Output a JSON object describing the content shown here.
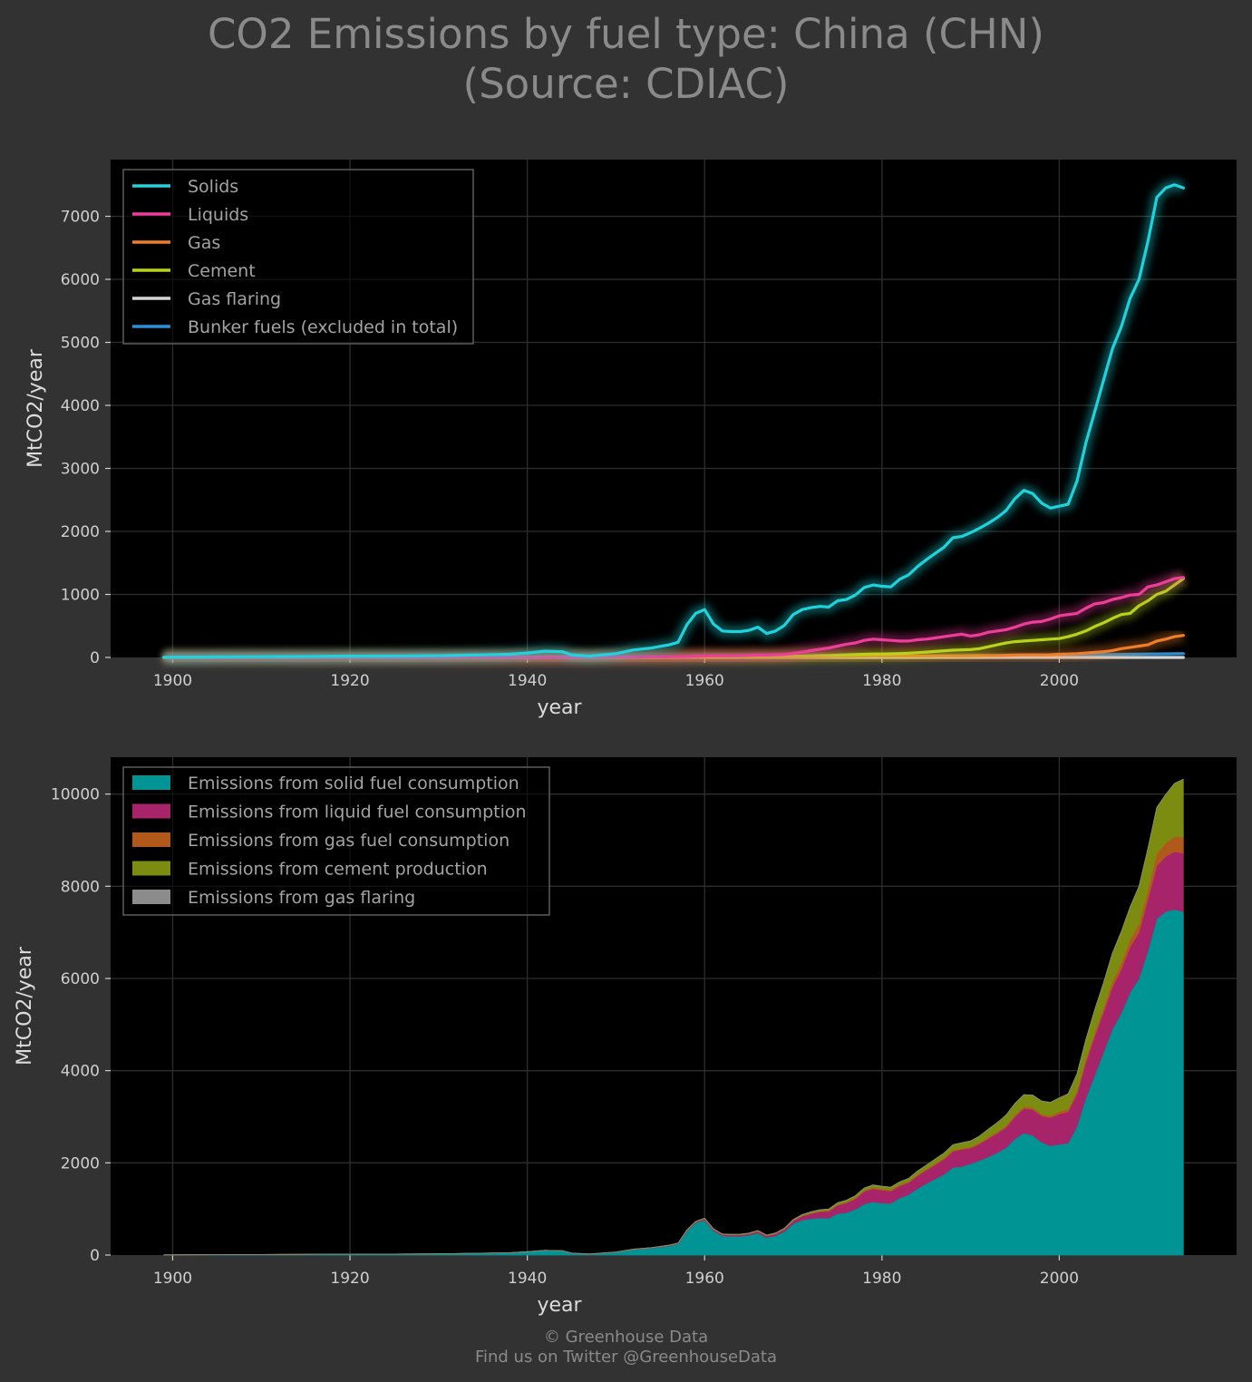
{
  "title": {
    "line1": "CO2 Emissions by fuel type: China (CHN)",
    "line2": "(Source: CDIAC)"
  },
  "footer": {
    "line1": "© Greenhouse Data",
    "line2": "Find us on Twitter @GreenhouseData"
  },
  "colors": {
    "background": "#323232",
    "plot_background": "#000000",
    "grid": "#2e2e2e",
    "solids": "#1fd3dd",
    "liquids": "#ee3e9a",
    "gas": "#f07d28",
    "cement": "#b9d31b",
    "gas_flaring": "#d6d6d6",
    "bunker": "#2a8fd3",
    "area_solid": "#009494",
    "area_liquid": "#a8246a",
    "area_gas": "#b0591b",
    "area_cement": "#7c8c10",
    "area_flaring": "#8c8c8c"
  },
  "chart_data": [
    {
      "type": "line",
      "xlabel": "year",
      "ylabel": "MtCO2/year",
      "xlim": [
        1893,
        2020
      ],
      "ylim": [
        0,
        7900
      ],
      "xticks": [
        1900,
        1920,
        1940,
        1960,
        1980,
        2000
      ],
      "yticks": [
        0,
        1000,
        2000,
        3000,
        4000,
        5000,
        6000,
        7000
      ],
      "grid": true,
      "legend_position": "top-left",
      "x": [
        1899,
        1902,
        1905,
        1910,
        1915,
        1920,
        1925,
        1930,
        1935,
        1938,
        1940,
        1942,
        1944,
        1945,
        1947,
        1950,
        1952,
        1954,
        1956,
        1957,
        1958,
        1959,
        1960,
        1961,
        1962,
        1963,
        1964,
        1965,
        1966,
        1967,
        1968,
        1969,
        1970,
        1971,
        1972,
        1973,
        1974,
        1975,
        1976,
        1977,
        1978,
        1979,
        1980,
        1981,
        1982,
        1983,
        1984,
        1985,
        1986,
        1987,
        1988,
        1989,
        1990,
        1991,
        1992,
        1993,
        1994,
        1995,
        1996,
        1997,
        1998,
        1999,
        2000,
        2001,
        2002,
        2003,
        2004,
        2005,
        2006,
        2007,
        2008,
        2009,
        2010,
        2011,
        2012,
        2013,
        2014
      ],
      "series": [
        {
          "name": "Solids",
          "key": "solids",
          "values": [
            3,
            5,
            8,
            12,
            15,
            20,
            22,
            28,
            40,
            50,
            70,
            100,
            90,
            40,
            20,
            60,
            120,
            150,
            200,
            240,
            520,
            700,
            760,
            530,
            420,
            410,
            410,
            430,
            480,
            380,
            420,
            510,
            680,
            760,
            790,
            810,
            800,
            900,
            920,
            990,
            1110,
            1150,
            1130,
            1120,
            1240,
            1310,
            1440,
            1550,
            1650,
            1750,
            1900,
            1920,
            1980,
            2050,
            2130,
            2220,
            2330,
            2520,
            2650,
            2600,
            2450,
            2370,
            2400,
            2430,
            2800,
            3400,
            3900,
            4400,
            4900,
            5250,
            5700,
            6000,
            6600,
            7300,
            7450,
            7500,
            7450
          ]
        },
        {
          "name": "Liquids",
          "key": "liquids",
          "values": [
            0,
            0,
            0,
            0,
            0,
            0,
            0,
            0,
            1,
            1,
            2,
            2,
            2,
            2,
            2,
            4,
            6,
            8,
            10,
            12,
            15,
            20,
            25,
            26,
            25,
            26,
            28,
            32,
            36,
            36,
            40,
            48,
            64,
            85,
            110,
            130,
            150,
            180,
            210,
            230,
            270,
            290,
            280,
            270,
            260,
            260,
            280,
            290,
            310,
            330,
            350,
            370,
            340,
            360,
            400,
            420,
            440,
            480,
            530,
            560,
            570,
            610,
            660,
            680,
            700,
            780,
            850,
            870,
            920,
            950,
            990,
            1000,
            1120,
            1150,
            1200,
            1250,
            1270
          ]
        },
        {
          "name": "Gas",
          "key": "gas",
          "values": [
            0,
            0,
            0,
            0,
            0,
            0,
            0,
            0,
            0,
            0,
            0,
            0,
            0,
            0,
            0,
            0,
            0,
            0,
            1,
            1,
            1,
            2,
            3,
            4,
            4,
            4,
            5,
            5,
            6,
            6,
            7,
            8,
            9,
            10,
            12,
            14,
            16,
            18,
            20,
            22,
            24,
            26,
            26,
            25,
            24,
            24,
            24,
            25,
            26,
            27,
            28,
            28,
            29,
            30,
            31,
            32,
            35,
            37,
            40,
            40,
            40,
            42,
            50,
            55,
            60,
            70,
            80,
            90,
            110,
            140,
            160,
            180,
            200,
            260,
            290,
            330,
            350
          ]
        },
        {
          "name": "Cement",
          "key": "cement",
          "values": [
            0,
            0,
            0,
            0,
            0,
            0,
            0,
            0,
            1,
            1,
            1,
            1,
            1,
            1,
            1,
            2,
            3,
            4,
            6,
            7,
            8,
            10,
            12,
            10,
            8,
            8,
            9,
            10,
            12,
            10,
            11,
            14,
            18,
            22,
            26,
            30,
            32,
            36,
            40,
            44,
            50,
            54,
            55,
            58,
            62,
            68,
            76,
            85,
            95,
            105,
            115,
            120,
            125,
            140,
            170,
            200,
            230,
            250,
            260,
            270,
            280,
            290,
            300,
            330,
            370,
            420,
            490,
            550,
            620,
            680,
            700,
            820,
            900,
            1000,
            1050,
            1150,
            1250
          ]
        },
        {
          "name": "Gas flaring",
          "key": "gas_flaring",
          "values": [
            0,
            0,
            0,
            0,
            0,
            0,
            0,
            0,
            0,
            0,
            0,
            0,
            0,
            0,
            0,
            0,
            0,
            0,
            0,
            0,
            0,
            0,
            0,
            0,
            0,
            0,
            0,
            0,
            0,
            0,
            0,
            0,
            0,
            0,
            0,
            0,
            0,
            0,
            0,
            0,
            0,
            0,
            0,
            0,
            0,
            0,
            0,
            0,
            0,
            0,
            0,
            0,
            0,
            0,
            0,
            0,
            0,
            0,
            0,
            0,
            0,
            0,
            0,
            0,
            0,
            0,
            0,
            0,
            0,
            0,
            0,
            0,
            0,
            0,
            0,
            0,
            0
          ]
        },
        {
          "name": "Bunker fuels (excluded in total)",
          "key": "bunker",
          "values": [
            0,
            0,
            0,
            0,
            0,
            0,
            0,
            0,
            0,
            0,
            0,
            0,
            0,
            0,
            0,
            0,
            1,
            1,
            1,
            1,
            2,
            2,
            3,
            3,
            3,
            3,
            4,
            4,
            4,
            4,
            5,
            5,
            6,
            6,
            7,
            8,
            9,
            10,
            11,
            12,
            13,
            14,
            15,
            15,
            16,
            16,
            17,
            18,
            19,
            20,
            21,
            22,
            23,
            24,
            25,
            26,
            27,
            28,
            30,
            31,
            32,
            33,
            35,
            36,
            38,
            40,
            42,
            44,
            46,
            48,
            50,
            52,
            54,
            56,
            58,
            60,
            62
          ]
        }
      ]
    },
    {
      "type": "area",
      "stacked": true,
      "xlabel": "year",
      "ylabel": "MtCO2/year",
      "xlim": [
        1893,
        2020
      ],
      "ylim": [
        0,
        10800
      ],
      "xticks": [
        1900,
        1920,
        1940,
        1960,
        1980,
        2000
      ],
      "yticks": [
        0,
        2000,
        4000,
        6000,
        8000,
        10000
      ],
      "grid": true,
      "legend_position": "top-left",
      "series": [
        {
          "name": "Emissions from solid fuel consumption",
          "key": "solids"
        },
        {
          "name": "Emissions from liquid fuel consumption",
          "key": "liquids"
        },
        {
          "name": "Emissions from gas fuel consumption",
          "key": "gas"
        },
        {
          "name": "Emissions from cement production",
          "key": "cement"
        },
        {
          "name": "Emissions from gas flaring",
          "key": "gas_flaring"
        }
      ]
    }
  ]
}
